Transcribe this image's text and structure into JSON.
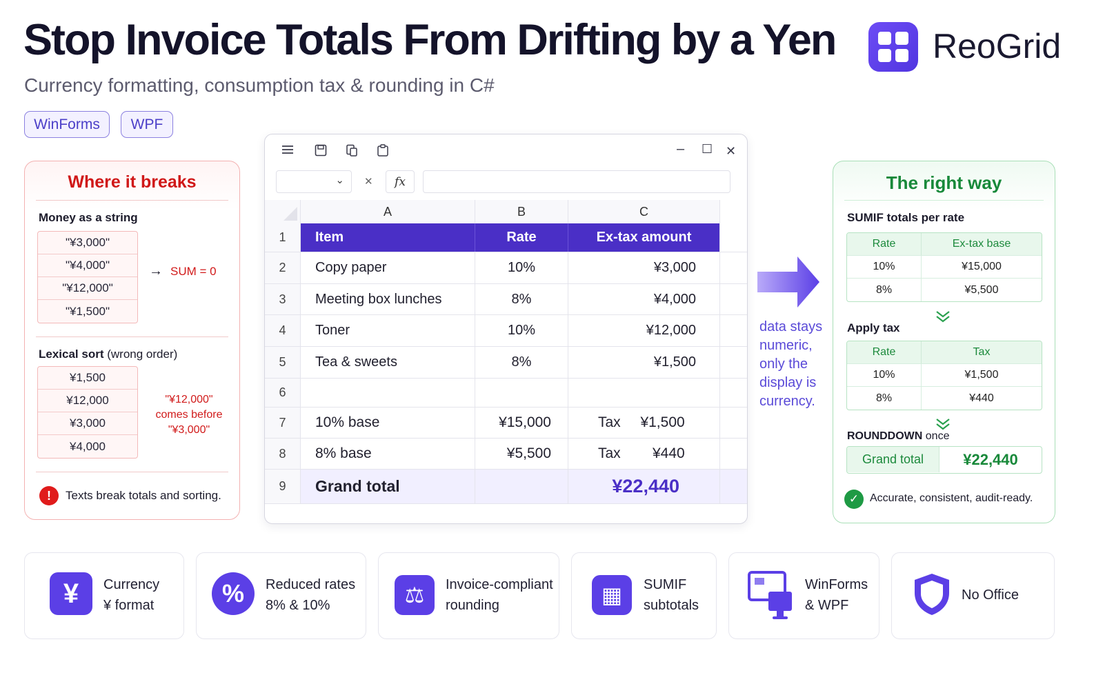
{
  "header": {
    "title": "Stop Invoice Totals From Drifting by a Yen",
    "subtitle": "Currency formatting, consumption tax & rounding in C#",
    "tags": [
      "WinForms",
      "WPF"
    ],
    "brand": "ReoGrid"
  },
  "bad_panel": {
    "title": "Where it breaks",
    "section1_label": "Money as a string",
    "strings": [
      "\"¥3,000\"",
      "\"¥4,000\"",
      "\"¥12,000\"",
      "\"¥1,500\""
    ],
    "arrow": "→",
    "sum_result": "SUM = 0",
    "section2_label": "Lexical sort",
    "section2_note": "(wrong order)",
    "sorted": [
      "¥1,500",
      "¥12,000",
      "¥3,000",
      "¥4,000"
    ],
    "sort_note": [
      "\"¥12,000\"",
      "comes before",
      "\"¥3,000\""
    ],
    "warning_icon": "!",
    "warning": "Texts break totals and sorting."
  },
  "sheet": {
    "toolbar_icons": [
      "menu-icon",
      "save-icon",
      "copy-icon",
      "paste-icon"
    ],
    "window_controls": [
      "–",
      "☐",
      "✕"
    ],
    "cancel_glyph": "✕",
    "fx_label": "fx",
    "dropdown_glyph": "⌄",
    "columns": [
      "A",
      "B",
      "C"
    ],
    "row_numbers": [
      "1",
      "2",
      "3",
      "4",
      "5",
      "6",
      "7",
      "8",
      "9"
    ],
    "header_row": [
      "Item",
      "Rate",
      "Ex-tax amount"
    ],
    "items": [
      {
        "item": "Copy paper",
        "rate": "10%",
        "amount": "¥3,000"
      },
      {
        "item": "Meeting box lunches",
        "rate": "8%",
        "amount": "¥4,000"
      },
      {
        "item": "Toner",
        "rate": "10%",
        "amount": "¥12,000"
      },
      {
        "item": "Tea & sweets",
        "rate": "8%",
        "amount": "¥1,500"
      }
    ],
    "base_rows": [
      {
        "label": "10% base",
        "base": "¥15,000",
        "tax_label": "Tax",
        "tax": "¥1,500"
      },
      {
        "label": "8% base",
        "base": "¥5,500",
        "tax_label": "Tax",
        "tax": "¥440"
      }
    ],
    "grand_total_label": "Grand total",
    "grand_total_value": "¥22,440"
  },
  "middle_note": [
    "data stays",
    "numeric,",
    "only the",
    "display is",
    "currency."
  ],
  "good_panel": {
    "title": "The right way",
    "sumif_label": "SUMIF totals per rate",
    "sumif_headers": [
      "Rate",
      "Ex-tax base"
    ],
    "sumif_rows": [
      [
        "10%",
        "¥15,000"
      ],
      [
        "8%",
        "¥5,500"
      ]
    ],
    "chevron": "⌄⌄",
    "tax_label": "Apply tax",
    "tax_headers": [
      "Rate",
      "Tax"
    ],
    "tax_rows": [
      [
        "10%",
        "¥1,500"
      ],
      [
        "8%",
        "¥440"
      ]
    ],
    "round_label": "ROUNDDOWN",
    "round_note": "once",
    "grand_label": "Grand total",
    "grand_value": "¥22,440",
    "ok_icon": "✓",
    "ok_text": "Accurate, consistent, audit-ready."
  },
  "features": [
    {
      "icon": "yen-icon",
      "glyph": "¥",
      "lines": [
        "Currency",
        "¥ format"
      ]
    },
    {
      "icon": "percent-icon",
      "glyph": "%",
      "lines": [
        "Reduced rates",
        "8% & 10%"
      ]
    },
    {
      "icon": "scale-icon",
      "glyph": "⚖",
      "lines": [
        "Invoice-compliant",
        "rounding"
      ]
    },
    {
      "icon": "calculator-icon",
      "glyph": "▦",
      "lines": [
        "SUMIF",
        "subtotals"
      ]
    },
    {
      "icon": "monitor-icon",
      "glyph": "",
      "lines": [
        "WinForms",
        "& WPF"
      ]
    },
    {
      "icon": "shield-icon",
      "glyph": "",
      "lines": [
        "No Office"
      ]
    }
  ],
  "colors": {
    "accent": "#5b3fe6",
    "sheet_header": "#4a2fc6",
    "bad_red": "#d01818",
    "good_green": "#18893a"
  }
}
